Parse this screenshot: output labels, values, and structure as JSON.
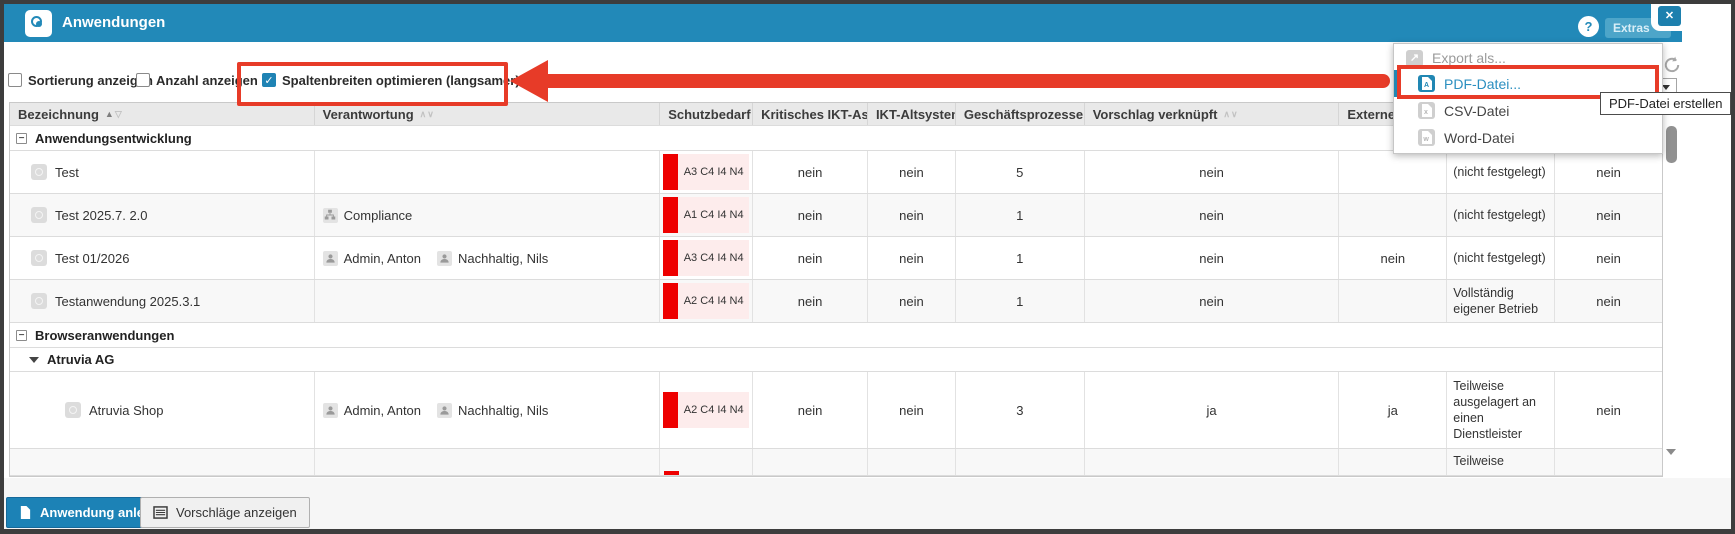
{
  "window": {
    "title": "Anwendungen",
    "help_icon": "?",
    "extras_button": "Extras",
    "close_icon": "✕",
    "header_color": "#2289b8"
  },
  "controls": {
    "checkboxes": [
      {
        "label": "Sortierung anzeigen",
        "checked": false
      },
      {
        "label": "Anzahl anzeigen",
        "checked": false
      },
      {
        "label": "Spaltenbreiten optimieren (langsamer)",
        "checked": true
      }
    ]
  },
  "annotation": {
    "color": "#e73b28"
  },
  "export_menu": {
    "header": {
      "label": "Export als...",
      "icon": "export-icon"
    },
    "items": [
      {
        "label": "PDF-Datei...",
        "icon": "pdf-file-icon",
        "highlighted": true
      },
      {
        "label": "CSV-Datei",
        "icon": "csv-file-icon",
        "highlighted": false
      },
      {
        "label": "Word-Datei",
        "icon": "word-file-icon",
        "highlighted": false
      }
    ]
  },
  "tooltip": {
    "text": "PDF-Datei erstellen"
  },
  "table": {
    "columns": [
      {
        "label": "Bezeichnung",
        "sort": "asc"
      },
      {
        "label": "Verantwortung",
        "sort": "none"
      },
      {
        "label": "Schutzbedarf",
        "sort": "none"
      },
      {
        "label": "Kritisches IKT-Asset",
        "sort": "none"
      },
      {
        "label": "IKT-Altsystem",
        "sort": "none"
      },
      {
        "label": "Geschäftsprozesse",
        "sort": "none"
      },
      {
        "label": "Vorschlag verknüpft",
        "sort": "none"
      },
      {
        "label": "Externe",
        "sort": "none"
      },
      {
        "label": "",
        "sort": "none"
      },
      {
        "label": "",
        "sort": "none"
      }
    ],
    "badge_colors": {
      "bar": "#ee0000",
      "bg": "#fdecec"
    },
    "rows": [
      {
        "type": "group",
        "label": "Anwendungsentwicklung"
      },
      {
        "type": "app",
        "name": "Test",
        "indent": 1,
        "responsible": [],
        "schutzbedarf": "A3 C4 I4 N4",
        "cells": [
          "nein",
          "nein",
          "5",
          "nein",
          "",
          "(nicht festgelegt)",
          "nein"
        ],
        "stripe": false
      },
      {
        "type": "app",
        "name": "Test 2025.7. 2.0",
        "indent": 1,
        "responsible": [
          {
            "icon": "org-icon",
            "name": "Compliance"
          }
        ],
        "schutzbedarf": "A1 C4 I4 N4",
        "cells": [
          "nein",
          "nein",
          "1",
          "nein",
          "",
          "(nicht festgelegt)",
          "nein"
        ],
        "stripe": true
      },
      {
        "type": "app",
        "name": "Test 01/2026",
        "indent": 1,
        "responsible": [
          {
            "icon": "person-icon",
            "name": "Admin, Anton"
          },
          {
            "icon": "person-icon",
            "name": "Nachhaltig, Nils"
          }
        ],
        "schutzbedarf": "A3 C4 I4 N4",
        "cells": [
          "nein",
          "nein",
          "1",
          "nein",
          "nein",
          "(nicht festgelegt)",
          "nein"
        ],
        "stripe": false
      },
      {
        "type": "app",
        "name": "Testanwendung 2025.3.1",
        "indent": 1,
        "responsible": [],
        "schutzbedarf": "A2 C4 I4 N4",
        "cells": [
          "nein",
          "nein",
          "1",
          "nein",
          "",
          "Vollständig eigener Betrieb",
          "nein"
        ],
        "stripe": true
      },
      {
        "type": "group",
        "label": "Browseranwendungen"
      },
      {
        "type": "subgroup",
        "label": "Atruvia AG"
      },
      {
        "type": "app",
        "name": "Atruvia Shop",
        "indent": 2,
        "responsible": [
          {
            "icon": "person-icon",
            "name": "Admin, Anton"
          },
          {
            "icon": "person-icon",
            "name": "Nachhaltig, Nils"
          }
        ],
        "schutzbedarf": "A2 C4 I4 N4",
        "tall": true,
        "cells": [
          "nein",
          "nein",
          "3",
          "ja",
          "ja",
          "Teilweise ausgelagert an einen Dienstleister",
          "nein"
        ],
        "stripe": false
      },
      {
        "type": "partial",
        "cells": [
          "",
          "",
          "",
          "",
          "",
          "Teilweise",
          ""
        ],
        "stripe": true
      }
    ]
  },
  "footer": {
    "buttons": [
      {
        "label": "Anwendung anlegen",
        "icon": "new-document-icon",
        "primary": true
      },
      {
        "label": "Vorschläge anzeigen",
        "icon": "list-icon",
        "primary": false
      }
    ]
  }
}
